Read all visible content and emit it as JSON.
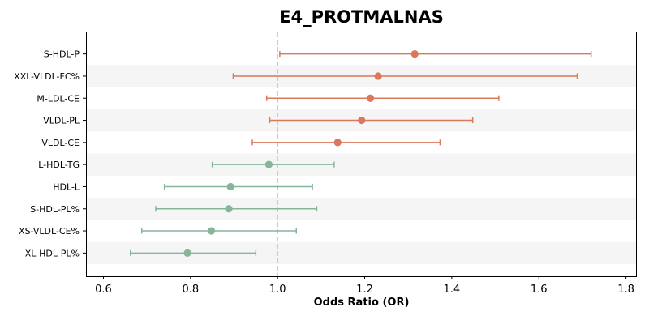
{
  "chart_data": {
    "type": "forest",
    "title": "E4_PROTMALNAS",
    "xlabel": "Odds Ratio (OR)",
    "xlim": [
      0.56,
      1.825
    ],
    "xticks": [
      "0.6",
      "0.8",
      "1.0",
      "1.2",
      "1.4",
      "1.6",
      "1.8"
    ],
    "reference_line": 1.0,
    "grid": false,
    "alternating_row_shading": true,
    "rows": [
      {
        "label": "S-HDL-P",
        "or": 1.315,
        "ci_low": 1.005,
        "ci_high": 1.72,
        "color": "#d9785a"
      },
      {
        "label": "XXL-VLDL-FC%",
        "or": 1.231,
        "ci_low": 0.898,
        "ci_high": 1.688,
        "color": "#d9785a"
      },
      {
        "label": "M-LDL-CE",
        "or": 1.213,
        "ci_low": 0.975,
        "ci_high": 1.508,
        "color": "#d9785a"
      },
      {
        "label": "VLDL-PL",
        "or": 1.193,
        "ci_low": 0.982,
        "ci_high": 1.448,
        "color": "#d9785a"
      },
      {
        "label": "VLDL-CE",
        "or": 1.138,
        "ci_low": 0.942,
        "ci_high": 1.373,
        "color": "#d9785a"
      },
      {
        "label": "L-HDL-TG",
        "or": 0.98,
        "ci_low": 0.85,
        "ci_high": 1.13,
        "color": "#86b69a"
      },
      {
        "label": "HDL-L",
        "or": 0.892,
        "ci_low": 0.74,
        "ci_high": 1.08,
        "color": "#86b69a"
      },
      {
        "label": "S-HDL-PL%",
        "or": 0.888,
        "ci_low": 0.72,
        "ci_high": 1.09,
        "color": "#86b69a"
      },
      {
        "label": "XS-VLDL-CE%",
        "or": 0.848,
        "ci_low": 0.688,
        "ci_high": 1.043,
        "color": "#86b69a"
      },
      {
        "label": "XL-HDL-PL%",
        "or": 0.793,
        "ci_low": 0.662,
        "ci_high": 0.95,
        "color": "#86b69a"
      }
    ],
    "colors": {
      "positive": "#d9785a",
      "negative": "#86b69a",
      "reference": "#f2c27a",
      "shade": "#f5f5f5"
    }
  }
}
